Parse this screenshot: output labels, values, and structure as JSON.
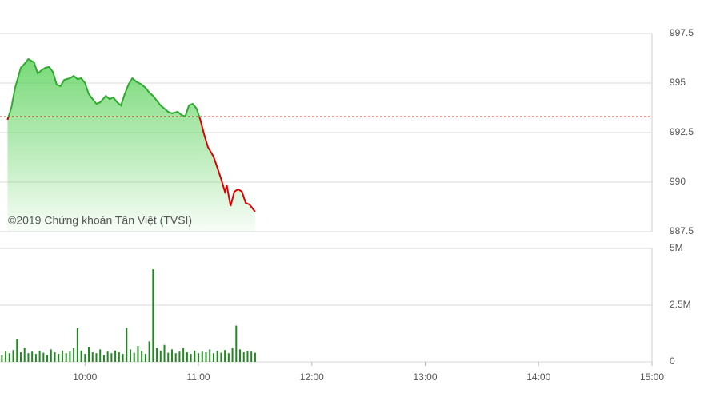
{
  "chart_data": [
    {
      "type": "line",
      "annotation": "©2019 Chứng khoán Tân Việt (TVSI)",
      "x": [
        559,
        561,
        563,
        566,
        568,
        570,
        573,
        575,
        577,
        579,
        581,
        583,
        585,
        587,
        589,
        592,
        594,
        596,
        598,
        600,
        602,
        604,
        606,
        608,
        611,
        613,
        615,
        617,
        619,
        621,
        623,
        625,
        627,
        630,
        632,
        634,
        636,
        638,
        640,
        642,
        644,
        646,
        649,
        651,
        653,
        655,
        657,
        659,
        661,
        663,
        665,
        668,
        670,
        672,
        674,
        675,
        677,
        679,
        681,
        683,
        685,
        687,
        690
      ],
      "values": [
        993.15,
        993.75,
        994.76,
        995.77,
        995.97,
        996.21,
        996.05,
        995.48,
        995.65,
        995.77,
        995.81,
        995.56,
        994.92,
        994.84,
        995.16,
        995.24,
        995.36,
        995.2,
        995.24,
        995.0,
        994.44,
        994.19,
        993.95,
        994.03,
        994.35,
        994.19,
        994.27,
        994.03,
        993.87,
        994.44,
        994.92,
        995.24,
        995.08,
        994.92,
        994.76,
        994.52,
        994.35,
        994.11,
        993.87,
        993.71,
        993.55,
        993.47,
        993.55,
        993.39,
        993.31,
        993.87,
        993.95,
        993.71,
        993.15,
        992.42,
        991.77,
        991.29,
        990.73,
        990.16,
        989.52,
        989.84,
        988.79,
        989.52,
        989.64,
        989.52,
        988.95,
        988.87,
        988.51
      ],
      "color": "#2eaa2e",
      "color_below": "#dd0000",
      "fill_color": "#5fd35f",
      "reference": 993.3,
      "reference_color": "#cc0000",
      "xlim": [
        555,
        900
      ],
      "ylim": [
        987.5,
        997.5
      ],
      "yticks": [
        987.5,
        990,
        992.5,
        995,
        997.5
      ],
      "grid": true
    },
    {
      "type": "bar",
      "x": [
        556,
        558,
        560,
        562,
        564,
        566,
        568,
        570,
        572,
        574,
        576,
        578,
        580,
        582,
        584,
        586,
        588,
        590,
        592,
        594,
        596,
        598,
        600,
        602,
        604,
        606,
        608,
        610,
        612,
        614,
        616,
        618,
        620,
        622,
        624,
        626,
        628,
        630,
        632,
        634,
        636,
        638,
        640,
        642,
        644,
        646,
        648,
        650,
        652,
        654,
        656,
        658,
        660,
        662,
        664,
        666,
        668,
        670,
        672,
        674,
        676,
        678,
        680,
        682,
        684,
        686,
        688,
        690
      ],
      "values": [
        300000,
        450000,
        380000,
        520000,
        1000000,
        420000,
        600000,
        380000,
        450000,
        350000,
        480000,
        400000,
        300000,
        550000,
        420000,
        350000,
        500000,
        380000,
        450000,
        600000,
        1480000,
        500000,
        350000,
        650000,
        420000,
        380000,
        550000,
        300000,
        450000,
        380000,
        500000,
        420000,
        350000,
        1500000,
        550000,
        400000,
        700000,
        480000,
        350000,
        900000,
        4080000,
        600000,
        500000,
        750000,
        400000,
        550000,
        380000,
        450000,
        600000,
        420000,
        350000,
        500000,
        380000,
        450000,
        420000,
        550000,
        380000,
        480000,
        400000,
        520000,
        380000,
        600000,
        1600000,
        550000,
        420000,
        480000,
        450000,
        400000
      ],
      "color": "#1f8a1f",
      "xlim": [
        555,
        900
      ],
      "ylim": [
        0,
        5000000
      ],
      "yticks": [
        0,
        {
          "value": 2500000,
          "label": "2.5M"
        },
        {
          "value": 5000000,
          "label": "5M"
        }
      ],
      "xticks": [
        {
          "value": 600,
          "label": "10:00"
        },
        {
          "value": 660,
          "label": "11:00"
        },
        {
          "value": 720,
          "label": "12:00"
        },
        {
          "value": 780,
          "label": "13:00"
        },
        {
          "value": 840,
          "label": "14:00"
        },
        {
          "value": 900,
          "label": "15:00"
        }
      ],
      "grid": true
    }
  ]
}
